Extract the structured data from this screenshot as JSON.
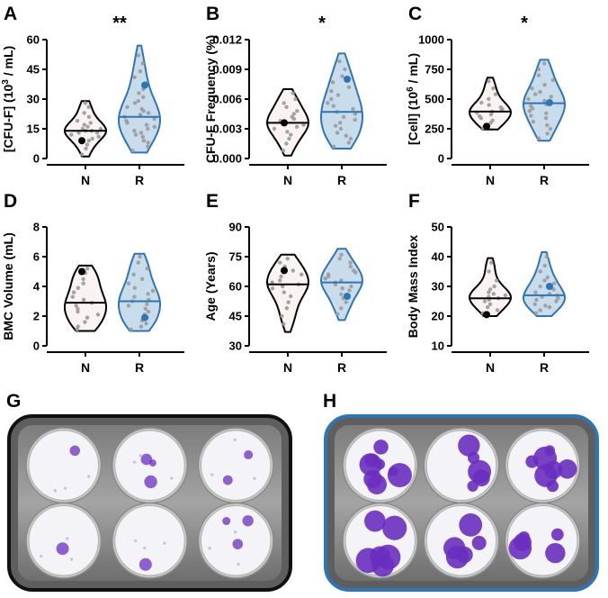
{
  "colors": {
    "n_outline": "#000000",
    "n_fill": "#fbf2f2",
    "r_outline": "#2e75b6",
    "r_fill": "#c9dcec",
    "dot": "#9a9a9a",
    "r_highlight": "#2e75b6",
    "n_highlight": "#000000",
    "stain": "#6a2fbf"
  },
  "panels": [
    {
      "letter": "A",
      "significance": "**",
      "ylabel_parts": [
        "[CFU-F] (10",
        "3",
        " / mL)"
      ],
      "ylim": [
        0,
        60
      ],
      "yticks": [
        "0",
        "15",
        "30",
        "45",
        "60"
      ],
      "ytick_values": [
        0,
        15,
        30,
        45,
        60
      ]
    },
    {
      "letter": "B",
      "significance": "*",
      "ylabel_parts": [
        "CFU-F Frequency (%)",
        "",
        ""
      ],
      "ylim": [
        0,
        0.012
      ],
      "yticks": [
        "0.000",
        "0.003",
        "0.006",
        "0.009",
        "0.012"
      ],
      "ytick_values": [
        0,
        0.003,
        0.006,
        0.009,
        0.012
      ]
    },
    {
      "letter": "C",
      "significance": "*",
      "ylabel_parts": [
        "[Cell] (10",
        "6",
        " / mL)"
      ],
      "ylim": [
        0,
        1000
      ],
      "yticks": [
        "0",
        "250",
        "500",
        "750",
        "1000"
      ],
      "ytick_values": [
        0,
        250,
        500,
        750,
        1000
      ]
    },
    {
      "letter": "D",
      "significance": "",
      "ylabel_parts": [
        "BMC Volume (mL)",
        "",
        ""
      ],
      "ylim": [
        0,
        8
      ],
      "yticks": [
        "0",
        "2",
        "4",
        "6",
        "8"
      ],
      "ytick_values": [
        0,
        2,
        4,
        6,
        8
      ]
    },
    {
      "letter": "E",
      "significance": "",
      "ylabel_parts": [
        "Age (Years)",
        "",
        ""
      ],
      "ylim": [
        30,
        90
      ],
      "yticks": [
        "30",
        "45",
        "60",
        "75",
        "90"
      ],
      "ytick_values": [
        30,
        45,
        60,
        75,
        90
      ]
    },
    {
      "letter": "F",
      "significance": "",
      "ylabel_parts": [
        "Body Mass Index",
        "",
        ""
      ],
      "ylim": [
        10,
        50
      ],
      "yticks": [
        "10",
        "20",
        "30",
        "40",
        "50"
      ],
      "ytick_values": [
        10,
        20,
        30,
        40,
        50
      ]
    }
  ],
  "photos": [
    {
      "letter": "G"
    },
    {
      "letter": "H"
    }
  ],
  "chart_data": [
    {
      "type": "violin",
      "panel": "A",
      "categories": [
        "N",
        "R"
      ],
      "ylabel": "[CFU-F] (10^3 / mL)",
      "ylim": [
        0,
        60
      ],
      "series": [
        {
          "group": "N",
          "range": [
            1,
            29
          ],
          "median": 14,
          "highlight": 9,
          "values": [
            2,
            5,
            7,
            9,
            10,
            11,
            12,
            13,
            13,
            14,
            14,
            15,
            15,
            16,
            17,
            18,
            19,
            21,
            23,
            26,
            28
          ]
        },
        {
          "group": "R",
          "range": [
            3,
            57
          ],
          "median": 21,
          "highlight": 37,
          "values": [
            4,
            6,
            8,
            9,
            11,
            12,
            13,
            14,
            15,
            16,
            17,
            18,
            19,
            20,
            21,
            22,
            22,
            23,
            24,
            25,
            26,
            28,
            29,
            31,
            33,
            35,
            38,
            41,
            44,
            48,
            52
          ]
        }
      ]
    },
    {
      "type": "violin",
      "panel": "B",
      "categories": [
        "N",
        "R"
      ],
      "ylabel": "CFU-F Frequency (%)",
      "ylim": [
        0,
        0.012
      ],
      "series": [
        {
          "group": "N",
          "range": [
            0.0003,
            0.007
          ],
          "median": 0.0036,
          "highlight": 0.0036,
          "values": [
            0.0008,
            0.0015,
            0.002,
            0.0024,
            0.0027,
            0.003,
            0.0032,
            0.0034,
            0.0036,
            0.0038,
            0.004,
            0.0042,
            0.0045,
            0.0048,
            0.0052,
            0.0056,
            0.006,
            0.0066
          ]
        },
        {
          "group": "R",
          "range": [
            0.001,
            0.0106
          ],
          "median": 0.0047,
          "highlight": 0.008,
          "values": [
            0.0012,
            0.0016,
            0.002,
            0.0023,
            0.0026,
            0.003,
            0.0033,
            0.0036,
            0.0039,
            0.0042,
            0.0045,
            0.0047,
            0.005,
            0.0053,
            0.0056,
            0.006,
            0.0064,
            0.0068,
            0.0072,
            0.0077,
            0.0083,
            0.009,
            0.0098
          ]
        }
      ]
    },
    {
      "type": "violin",
      "panel": "C",
      "categories": [
        "N",
        "R"
      ],
      "ylabel": "[Cell] (10^6 / mL)",
      "ylim": [
        0,
        1000
      ],
      "series": [
        {
          "group": "N",
          "range": [
            245,
            680
          ],
          "median": 395,
          "highlight": 270,
          "values": [
            255,
            275,
            300,
            320,
            340,
            355,
            370,
            385,
            395,
            405,
            415,
            430,
            450,
            470,
            500,
            540,
            590,
            650
          ]
        },
        {
          "group": "R",
          "range": [
            150,
            830
          ],
          "median": 465,
          "highlight": 470,
          "values": [
            170,
            210,
            250,
            280,
            310,
            340,
            360,
            380,
            400,
            420,
            440,
            455,
            470,
            485,
            500,
            520,
            540,
            560,
            590,
            620,
            660,
            700,
            750,
            800
          ]
        }
      ]
    },
    {
      "type": "violin",
      "panel": "D",
      "categories": [
        "N",
        "R"
      ],
      "ylabel": "BMC Volume (mL)",
      "ylim": [
        0,
        8
      ],
      "series": [
        {
          "group": "N",
          "range": [
            1.0,
            5.4
          ],
          "median": 2.9,
          "highlight": 5.0,
          "values": [
            1.1,
            1.3,
            1.6,
            1.9,
            2.1,
            2.3,
            2.5,
            2.7,
            2.9,
            3.1,
            3.3,
            3.6,
            3.9,
            4.2,
            4.5,
            4.9,
            5.2
          ]
        },
        {
          "group": "R",
          "range": [
            1.0,
            6.2
          ],
          "median": 3.0,
          "highlight": 1.9,
          "values": [
            1.1,
            1.3,
            1.5,
            1.7,
            1.9,
            2.1,
            2.3,
            2.5,
            2.7,
            2.8,
            3.0,
            3.1,
            3.3,
            3.5,
            3.7,
            3.9,
            4.2,
            4.5,
            4.8,
            5.2,
            5.6,
            6.0
          ]
        }
      ]
    },
    {
      "type": "violin",
      "panel": "E",
      "categories": [
        "N",
        "R"
      ],
      "ylabel": "Age (Years)",
      "ylim": [
        30,
        90
      ],
      "series": [
        {
          "group": "N",
          "range": [
            37,
            76
          ],
          "median": 61,
          "highlight": 68,
          "values": [
            41,
            45,
            49,
            52,
            55,
            57,
            59,
            60,
            61,
            62,
            63,
            65,
            66,
            68,
            70,
            72,
            74
          ]
        },
        {
          "group": "R",
          "range": [
            43,
            79
          ],
          "median": 62,
          "highlight": 55,
          "values": [
            46,
            49,
            52,
            54,
            56,
            58,
            59,
            60,
            61,
            62,
            63,
            64,
            65,
            66,
            67,
            68,
            70,
            72,
            74,
            76
          ]
        }
      ]
    },
    {
      "type": "violin",
      "panel": "F",
      "categories": [
        "N",
        "R"
      ],
      "ylabel": "Body Mass Index",
      "ylim": [
        10,
        50
      ],
      "series": [
        {
          "group": "N",
          "range": [
            20,
            39.5
          ],
          "median": 26,
          "highlight": 20.5,
          "values": [
            21,
            22,
            23,
            24,
            25,
            25.5,
            26,
            26.5,
            27,
            27.5,
            28,
            29,
            30,
            32,
            35,
            38
          ]
        },
        {
          "group": "R",
          "range": [
            20,
            41.5
          ],
          "median": 27,
          "highlight": 30,
          "values": [
            21,
            22,
            23,
            23.5,
            24,
            25,
            25.5,
            26,
            26.5,
            27,
            27.5,
            28,
            29,
            30,
            31,
            32,
            33,
            35,
            37,
            40
          ]
        }
      ]
    }
  ]
}
